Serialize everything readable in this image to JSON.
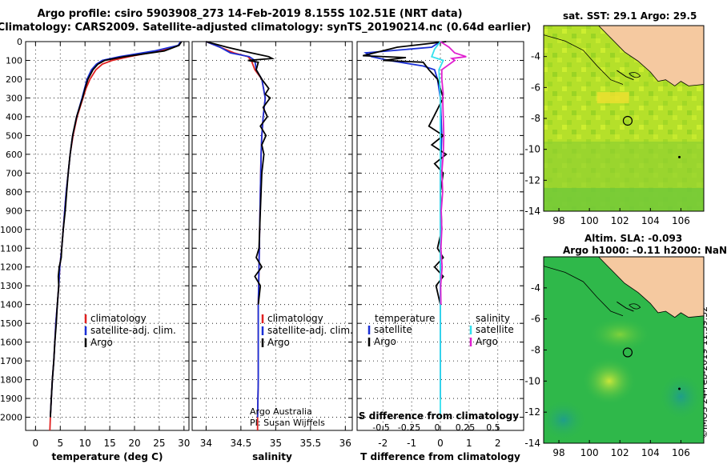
{
  "title_line1": "Argo profile: csiro 5903908_273 14-Feb-2019 8.155S 102.51E (NRT data)",
  "title_line2": "Climatology: CARS2009. Satellite-adjusted climatology: synTS_20190214.nc (0.64d earlier)",
  "map_sst_title": "sat. SST: 29.1 Argo: 29.5",
  "map_sla_title1": "Altim. SLA: -0.093",
  "map_sla_title2": "Argo h1000: -0.11 h2000: NaN",
  "credit": "©IMOS 24-Feb-2019 11:39:52",
  "chart_data": [
    {
      "type": "line",
      "xlabel": "temperature (deg C)",
      "ylabel": "",
      "xlim": [
        -2,
        31
      ],
      "ylim": [
        2070,
        0
      ],
      "xticks": [
        0,
        5,
        10,
        15,
        20,
        25,
        30
      ],
      "yticks": [
        0,
        100,
        200,
        300,
        400,
        500,
        600,
        700,
        800,
        900,
        1000,
        1100,
        1200,
        1300,
        1400,
        1500,
        1600,
        1700,
        1800,
        1900,
        2000
      ],
      "legend": [
        "climatology",
        "satellite-adj. clim.",
        "Argo"
      ],
      "legend_colors": [
        "#e02020",
        "#1a2fd6",
        "#000000"
      ],
      "series": [
        {
          "name": "climatology",
          "color": "#e02020",
          "depth": [
            0,
            20,
            50,
            80,
            100,
            120,
            150,
            200,
            250,
            300,
            400,
            500,
            600,
            700,
            800,
            900,
            1000,
            1100,
            1200,
            1300,
            1400,
            1500,
            1600,
            1700,
            1800,
            1900,
            2000,
            2070
          ],
          "values": [
            29.3,
            28.9,
            25,
            19,
            15.5,
            13.5,
            12.2,
            11,
            10.2,
            9.6,
            8.4,
            7.6,
            7,
            6.6,
            6.2,
            5.9,
            5.6,
            5.3,
            4.9,
            4.7,
            4.4,
            4.1,
            3.9,
            3.7,
            3.4,
            3.2,
            3,
            2.9
          ]
        },
        {
          "name": "satellite-adj. clim.",
          "color": "#1a2fd6",
          "depth": [
            0,
            20,
            50,
            80,
            100,
            120,
            150,
            200,
            250,
            300,
            400,
            500,
            600,
            700,
            800,
            900,
            1000,
            1100,
            1200,
            1300,
            1400,
            1500,
            1600,
            1700,
            1800,
            1900,
            2000
          ],
          "values": [
            29.3,
            28.8,
            24,
            17,
            13.5,
            12.3,
            11.3,
            10.4,
            9.9,
            9.4,
            8.3,
            7.5,
            7,
            6.6,
            6.2,
            5.9,
            5.6,
            5.3,
            4.9,
            4.7,
            4.4,
            4.1,
            3.9,
            3.7,
            3.4,
            3.2,
            3
          ]
        },
        {
          "name": "Argo",
          "color": "#000000",
          "depth": [
            0,
            20,
            50,
            80,
            100,
            120,
            150,
            200,
            250,
            300,
            400,
            500,
            600,
            700,
            800,
            900,
            1000,
            1100,
            1150,
            1200,
            1250,
            1300,
            1400,
            1500,
            1600,
            1700,
            1800,
            1900,
            2000
          ],
          "values": [
            29.5,
            29,
            26,
            18,
            14,
            12.6,
            11.6,
            10.6,
            10,
            9.5,
            8.3,
            7.5,
            7,
            6.6,
            6.3,
            6,
            5.6,
            5.3,
            5.2,
            4.8,
            4.6,
            4.7,
            4.4,
            4.2,
            3.9,
            3.7,
            3.4,
            3.2,
            3
          ]
        }
      ]
    },
    {
      "type": "line",
      "xlabel": "salinity",
      "ylabel": "",
      "xlim": [
        33.8,
        36.1
      ],
      "ylim": [
        2070,
        0
      ],
      "xticks": [
        34,
        34.5,
        35,
        35.5,
        36
      ],
      "xticklabels": [
        "34",
        "34.5",
        "35",
        "35.5",
        "36"
      ],
      "legend": [
        "climatology",
        "satellite-adj. clim.",
        "Argo"
      ],
      "legend_colors": [
        "#e02020",
        "#1a2fd6",
        "#000000"
      ],
      "annotation": [
        "Argo Australia",
        "PI: Susan Wijffels"
      ],
      "series": [
        {
          "name": "climatology",
          "color": "#e02020",
          "depth": [
            0,
            30,
            60,
            80,
            100,
            150,
            200,
            300,
            400,
            500,
            600,
            800,
            1000,
            1200,
            1400,
            1600,
            1800,
            2000,
            2070
          ],
          "values": [
            34.0,
            34.2,
            34.4,
            34.6,
            34.65,
            34.7,
            34.8,
            34.85,
            34.82,
            34.8,
            34.79,
            34.78,
            34.77,
            34.76,
            34.75,
            34.75,
            34.75,
            34.74,
            34.74
          ]
        },
        {
          "name": "satellite-adj. clim.",
          "color": "#1a2fd6",
          "depth": [
            0,
            30,
            60,
            80,
            100,
            150,
            200,
            300,
            400,
            500,
            600,
            800,
            1000,
            1200,
            1400,
            1600,
            1800,
            2000
          ],
          "values": [
            34.0,
            34.2,
            34.35,
            34.62,
            34.7,
            34.72,
            34.8,
            34.85,
            34.82,
            34.8,
            34.79,
            34.78,
            34.77,
            34.76,
            34.75,
            34.75,
            34.75,
            34.74
          ]
        },
        {
          "name": "Argo",
          "color": "#000000",
          "depth": [
            0,
            30,
            60,
            80,
            90,
            100,
            110,
            150,
            200,
            250,
            280,
            300,
            350,
            400,
            450,
            500,
            550,
            600,
            700,
            800,
            900,
            1000,
            1100,
            1150,
            1200,
            1250,
            1300,
            1400
          ],
          "values": [
            34.0,
            34.3,
            34.65,
            34.9,
            34.95,
            34.6,
            34.75,
            34.72,
            34.8,
            34.9,
            34.85,
            34.92,
            34.82,
            34.88,
            34.78,
            34.86,
            34.8,
            34.83,
            34.8,
            34.79,
            34.78,
            34.77,
            34.76,
            34.72,
            34.8,
            34.7,
            34.78,
            34.75
          ]
        }
      ]
    },
    {
      "type": "line",
      "xlabel": "T difference from climatology",
      "xlabel2": "S difference from climatology",
      "ylabel": "",
      "xlim": [
        -2.9,
        2.9
      ],
      "ylim": [
        2070,
        0
      ],
      "xticks": [
        -2,
        -1,
        0,
        1,
        2
      ],
      "sticks": [
        -0.5,
        -0.25,
        0,
        0.25,
        0.5
      ],
      "sticklabels": [
        "-0.5",
        "-0.25",
        "0",
        "0.25",
        "0.5"
      ],
      "legend_t_title": "temperature",
      "legend_s_title": "salinity",
      "legend_t": [
        "satellite",
        "Argo"
      ],
      "legend_t_colors": [
        "#1a2fd6",
        "#000000"
      ],
      "legend_s": [
        "satellite",
        "Argo"
      ],
      "legend_s_colors": [
        "#33e0ee",
        "#e020d0"
      ],
      "series": [
        {
          "name": "temperature satellite",
          "color": "#1a2fd6",
          "depth": [
            0,
            30,
            60,
            80,
            100,
            130,
            150,
            200,
            300,
            500,
            700,
            900,
            1100,
            1300,
            1500,
            1900
          ],
          "values": [
            0,
            -0.3,
            -2.6,
            -2.4,
            -1.8,
            -0.6,
            -0.2,
            -0.1,
            0,
            0.05,
            0,
            0,
            0,
            0,
            0,
            0
          ]
        },
        {
          "name": "temperature Argo",
          "color": "#000000",
          "depth": [
            0,
            30,
            60,
            75,
            85,
            100,
            110,
            150,
            200,
            300,
            450,
            500,
            550,
            600,
            650,
            700,
            800,
            1000,
            1100,
            1150,
            1200,
            1250,
            1300,
            1400
          ],
          "values": [
            0.2,
            -1.5,
            -2.3,
            -2.7,
            -1.2,
            -2.0,
            -0.6,
            -0.4,
            -0.1,
            0.1,
            -0.4,
            0.1,
            -0.3,
            0.2,
            -0.2,
            0.1,
            0,
            0.05,
            -0.1,
            0.1,
            -0.2,
            0.1,
            -0.15,
            0
          ]
        },
        {
          "name": "salinity satellite",
          "color": "#33e0ee",
          "depth": [
            0,
            40,
            80,
            100,
            150,
            300,
            600,
            900,
            1200,
            1500,
            1800,
            2000
          ],
          "values": [
            0,
            -0.2,
            -0.3,
            0.1,
            -0.05,
            0,
            0,
            0,
            0,
            0,
            0,
            0
          ]
        },
        {
          "name": "salinity Argo",
          "color": "#e020d0",
          "depth": [
            0,
            30,
            60,
            80,
            90,
            100,
            150,
            200,
            280,
            300,
            400,
            500,
            600,
            700,
            800,
            900,
            1000,
            1100,
            1200,
            1300,
            1400
          ],
          "values": [
            0,
            0.3,
            0.5,
            0.9,
            0.4,
            0.5,
            0.05,
            0.05,
            0.1,
            0.08,
            0.1,
            0.12,
            0.1,
            0.05,
            0.08,
            0.03,
            0.05,
            0.02,
            0.06,
            0.01,
            0.02
          ]
        }
      ]
    },
    {
      "type": "heatmap",
      "title": "sat. SST: 29.1 Argo: 29.5",
      "xlim": [
        97,
        107.5
      ],
      "ylim": [
        -14,
        -2
      ],
      "xticks": [
        98,
        100,
        102,
        104,
        106
      ],
      "yticks": [
        -4,
        -6,
        -8,
        -10,
        -12,
        -14
      ],
      "profile_location": [
        102.51,
        -8.155
      ]
    },
    {
      "type": "heatmap",
      "title": "Altim. SLA: -0.093",
      "xlim": [
        97,
        107.5
      ],
      "ylim": [
        -14,
        -2
      ],
      "xticks": [
        98,
        100,
        102,
        104,
        106
      ],
      "yticks": [
        -4,
        -6,
        -8,
        -10,
        -12,
        -14
      ],
      "profile_location": [
        102.51,
        -8.155
      ]
    }
  ]
}
